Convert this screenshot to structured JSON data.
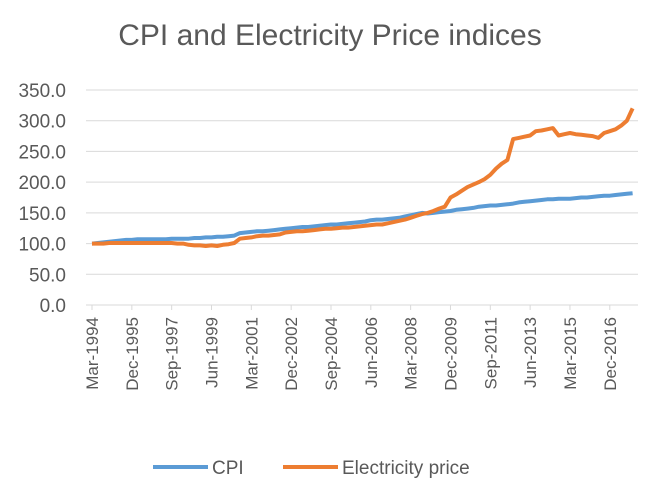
{
  "chart_data": {
    "type": "line",
    "title": "CPI and Electricity Price indices",
    "xlabel": "",
    "ylabel": "",
    "ylim": [
      0,
      350
    ],
    "y_ticks": [
      "0.0",
      "50.0",
      "100.0",
      "150.0",
      "200.0",
      "250.0",
      "300.0",
      "350.0"
    ],
    "grid": true,
    "legend": "bottom",
    "x_start": "Mar-1994",
    "x_frequency": "quarterly",
    "x_tick_labels": [
      "Mar-1994",
      "Dec-1995",
      "Sep-1997",
      "Jun-1999",
      "Mar-2001",
      "Dec-2002",
      "Sep-2004",
      "Jun-2006",
      "Mar-2008",
      "Dec-2009",
      "Sep-2011",
      "Jun-2013",
      "Mar-2015",
      "Dec-2016"
    ],
    "series": [
      {
        "name": "CPI",
        "color": "#5B9BD5",
        "values": [
          100,
          101,
          102,
          103,
          104,
          105,
          106,
          106,
          107,
          107,
          107,
          107,
          107,
          107,
          108,
          108,
          108,
          108,
          109,
          109,
          110,
          110,
          111,
          111,
          112,
          113,
          117,
          118,
          119,
          120,
          120,
          121,
          122,
          123,
          124,
          125,
          126,
          127,
          127,
          128,
          129,
          130,
          131,
          131,
          132,
          133,
          134,
          135,
          136,
          138,
          139,
          139,
          140,
          141,
          142,
          144,
          146,
          148,
          150,
          149,
          150,
          151,
          152,
          153,
          155,
          156,
          157,
          158,
          160,
          161,
          162,
          162,
          163,
          164,
          165,
          167,
          168,
          169,
          170,
          171,
          172,
          172,
          173,
          173,
          173,
          174,
          175,
          175,
          176,
          177,
          178,
          178,
          179,
          180,
          181,
          182
        ]
      },
      {
        "name": "Electricity price",
        "color": "#ED7D31",
        "values": [
          100,
          100,
          100,
          101,
          101,
          101,
          101,
          101,
          101,
          101,
          101,
          101,
          101,
          101,
          101,
          100,
          100,
          98,
          97,
          97,
          96,
          97,
          96,
          98,
          99,
          101,
          108,
          109,
          110,
          112,
          113,
          113,
          114,
          115,
          118,
          119,
          120,
          120,
          121,
          122,
          123,
          124,
          124,
          125,
          126,
          126,
          127,
          128,
          129,
          130,
          131,
          131,
          133,
          135,
          137,
          139,
          142,
          145,
          148,
          150,
          153,
          157,
          160,
          175,
          180,
          186,
          192,
          196,
          200,
          205,
          212,
          222,
          230,
          236,
          270,
          272,
          274,
          276,
          283,
          284,
          286,
          288,
          276,
          278,
          280,
          278,
          277,
          276,
          275,
          272,
          280,
          283,
          286,
          292,
          300,
          320
        ]
      }
    ]
  }
}
